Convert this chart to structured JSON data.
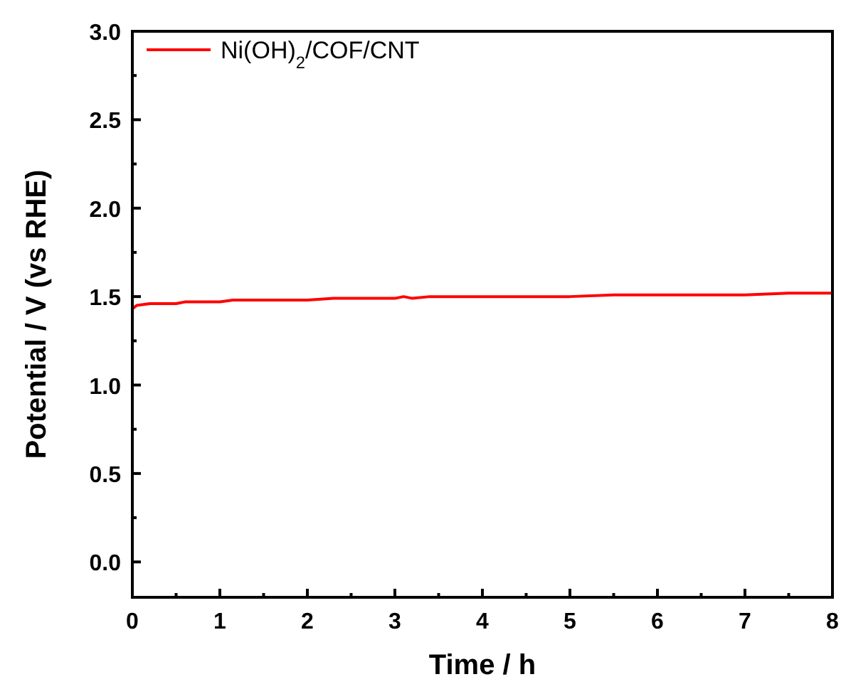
{
  "chart_data": {
    "type": "line",
    "xlabel": "Time / h",
    "ylabel": "Potential / V (vs RHE)",
    "xlim": [
      0,
      8
    ],
    "ylim": [
      -0.2,
      3.0
    ],
    "xticks": [
      0,
      {
        "value": 0.5,
        "label": null
      },
      1,
      {
        "value": 1.5,
        "label": null
      },
      2,
      {
        "value": 2.5,
        "label": null
      },
      3,
      {
        "value": 3.5,
        "label": null
      },
      4,
      {
        "value": 4.5,
        "label": null
      },
      5,
      {
        "value": 5.5,
        "label": null
      },
      6,
      {
        "value": 6.5,
        "label": null
      },
      7,
      {
        "value": 7.5,
        "label": null
      },
      8
    ],
    "yticks": [
      {
        "value": 0,
        "label": "0.0"
      },
      {
        "value": 0.25,
        "label": null
      },
      0.5,
      {
        "value": 0.75,
        "label": null
      },
      {
        "value": 1,
        "label": "1.0"
      },
      {
        "value": 1.25,
        "label": null
      },
      1.5,
      {
        "value": 1.75,
        "label": null
      },
      {
        "value": 2,
        "label": "2.0"
      },
      {
        "value": 2.25,
        "label": null
      },
      2.5,
      {
        "value": 2.75,
        "label": null
      },
      {
        "value": 3,
        "label": "3.0"
      }
    ],
    "legend": "top left",
    "grid": false,
    "marker": "none",
    "line_style": "solid",
    "series": [
      {
        "name": "Ni(OH)$_{2}$/COF/CNT",
        "color": "#ff0000",
        "x": [
          0,
          0.05,
          0.2,
          0.5,
          0.6,
          1,
          1.15,
          2,
          2.3,
          3,
          3.1,
          3.2,
          3.4,
          4,
          4.5,
          5,
          5.5,
          5.7,
          6,
          7,
          7.5,
          8
        ],
        "values": [
          1.43,
          1.45,
          1.46,
          1.46,
          1.47,
          1.47,
          1.48,
          1.48,
          1.49,
          1.49,
          1.5,
          1.49,
          1.5,
          1.5,
          1.5,
          1.5,
          1.51,
          1.51,
          1.51,
          1.51,
          1.52,
          1.52
        ]
      }
    ]
  }
}
